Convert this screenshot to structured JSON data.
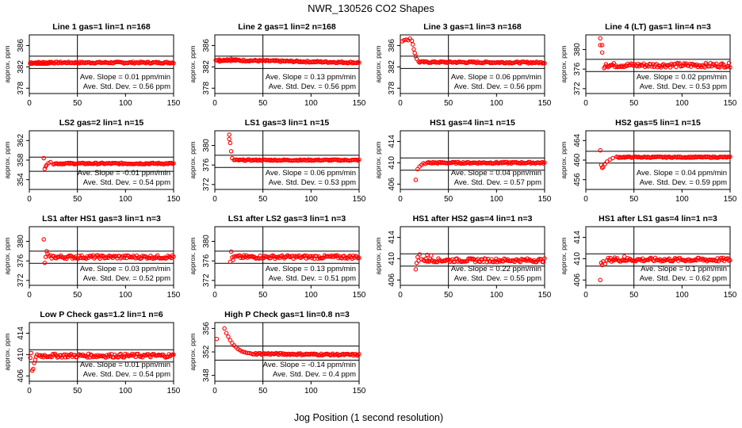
{
  "page": {
    "title": "NWR_130526   CO2 Shapes",
    "xlabel": "Jog Position (1 second resolution)"
  },
  "style": {
    "point_color": "#ff0000",
    "line_color": "#000000"
  },
  "chart_data": [
    {
      "type": "scatter",
      "title": "Line 1 gas=1 lin=1 n=168",
      "ylabel": "approx. ppm",
      "xlim": [
        0,
        150
      ],
      "ylim": [
        377,
        388
      ],
      "yticks": [
        378,
        382,
        386
      ],
      "xticks": [
        0,
        50,
        100,
        150
      ],
      "vline": 50,
      "hlines": [
        384.0,
        381.7
      ],
      "x_start": 1,
      "x_end": 150,
      "y_start": 382.8,
      "y_end": 382.8,
      "noise": 0.15,
      "early": [
        [
          1,
          382.6
        ],
        [
          3,
          382.6
        ],
        [
          5,
          382.7
        ],
        [
          7,
          382.6
        ],
        [
          9,
          382.6
        ],
        [
          11,
          382.6
        ],
        [
          13,
          382.6
        ],
        [
          15,
          382.6
        ],
        [
          17,
          382.6
        ],
        [
          19,
          382.6
        ],
        [
          21,
          382.9
        ],
        [
          23,
          382.9
        ]
      ],
      "slope_text": "Ave. Slope = 0.01 ppm/min",
      "std_text": "Ave. Std. Dev. = 0.56 ppm"
    },
    {
      "type": "scatter",
      "title": "Line 2 gas=1 lin=2 n=168",
      "ylabel": "approx. ppm",
      "xlim": [
        0,
        150
      ],
      "ylim": [
        377,
        388
      ],
      "yticks": [
        378,
        382,
        386
      ],
      "xticks": [
        0,
        50,
        100,
        150
      ],
      "vline": 50,
      "hlines": [
        384.0,
        381.7
      ],
      "x_start": 1,
      "x_end": 150,
      "y_start": 383.3,
      "y_end": 382.8,
      "noise": 0.15,
      "early": [
        [
          5,
          383.0
        ],
        [
          9,
          383.2
        ],
        [
          13,
          383.4
        ],
        [
          17,
          383.5
        ],
        [
          21,
          383.4
        ],
        [
          25,
          383.3
        ]
      ],
      "slope_text": "Ave. Slope = 0.13 ppm/min",
      "std_text": "Ave. Std. Dev. = 0.56 ppm"
    },
    {
      "type": "scatter",
      "title": "Line 3 gas=1 lin=3 n=168",
      "ylabel": "approx. ppm",
      "xlim": [
        0,
        150
      ],
      "ylim": [
        377,
        388
      ],
      "yticks": [
        378,
        382,
        386
      ],
      "xticks": [
        0,
        50,
        100,
        150
      ],
      "vline": 50,
      "hlines": [
        384.0,
        381.7
      ],
      "x_start": 20,
      "x_end": 150,
      "y_start": 382.9,
      "y_end": 382.8,
      "noise": 0.15,
      "early": [
        [
          2,
          386.8
        ],
        [
          4,
          387.0
        ],
        [
          6,
          387.1
        ],
        [
          8,
          387.0
        ],
        [
          10,
          387.3
        ],
        [
          12,
          386.9
        ],
        [
          13,
          386.2
        ],
        [
          14,
          385.3
        ],
        [
          15,
          384.6
        ],
        [
          16,
          384.0
        ],
        [
          17,
          383.5
        ],
        [
          19,
          383.0
        ]
      ],
      "slope_text": "Ave. Slope = 0.06 ppm/min",
      "std_text": "Ave. Std. Dev. = 0.56 ppm"
    },
    {
      "type": "scatter",
      "title": "Line 4 (LT) gas=1 lin=4 n=3",
      "ylabel": "approx. ppm",
      "xlim": [
        0,
        150
      ],
      "ylim": [
        371,
        383
      ],
      "yticks": [
        372,
        376,
        380
      ],
      "xticks": [
        0,
        50,
        100,
        150
      ],
      "vline": 50,
      "hlines": [
        378.0,
        375.5
      ],
      "x_start": 22,
      "x_end": 150,
      "y_start": 376.8,
      "y_end": 376.8,
      "noise": 0.45,
      "early": [
        [
          15,
          382.3
        ],
        [
          15,
          380.9
        ],
        [
          17,
          380.9
        ],
        [
          17,
          379.4
        ],
        [
          19,
          376.2
        ],
        [
          20,
          376.5
        ],
        [
          21,
          377.0
        ]
      ],
      "slope_text": "Ave. Slope = 0.02 ppm/min",
      "std_text": "Ave. Std. Dev. = 0.53 ppm"
    },
    {
      "type": "scatter",
      "title": "LS2 gas=2 lin=1 n=15",
      "ylabel": "approx. ppm",
      "xlim": [
        0,
        150
      ],
      "ylim": [
        352,
        364
      ],
      "yticks": [
        354,
        358,
        362
      ],
      "xticks": [
        0,
        50,
        100,
        150
      ],
      "vline": 50,
      "hlines": [
        358.6,
        355.7
      ],
      "x_start": 25,
      "x_end": 150,
      "y_start": 357.3,
      "y_end": 357.3,
      "noise": 0.15,
      "early": [
        [
          15,
          358.4
        ],
        [
          16,
          356.2
        ],
        [
          17,
          356.7
        ],
        [
          18,
          357.0
        ],
        [
          20,
          357.4
        ],
        [
          22,
          357.6
        ]
      ],
      "slope_text": "Ave. Slope = -0.01 ppm/min",
      "std_text": "Ave. Std. Dev. = 0.54 ppm"
    },
    {
      "type": "scatter",
      "title": "LS1 gas=3 lin=1 n=15",
      "ylabel": "approx. ppm",
      "xlim": [
        0,
        150
      ],
      "ylim": [
        371,
        383
      ],
      "yticks": [
        372,
        376,
        380
      ],
      "xticks": [
        0,
        50,
        100,
        150
      ],
      "vline": 50,
      "hlines": [
        378.0,
        375.5
      ],
      "x_start": 20,
      "x_end": 150,
      "y_start": 377.0,
      "y_end": 377.0,
      "noise": 0.12,
      "early": [
        [
          15,
          382.2
        ],
        [
          15,
          381.3
        ],
        [
          16,
          380.5
        ],
        [
          17,
          378.8
        ],
        [
          18,
          377.4
        ]
      ],
      "slope_text": "Ave. Slope = 0.06 ppm/min",
      "std_text": "Ave. Std. Dev. = 0.53 ppm"
    },
    {
      "type": "scatter",
      "title": "HS1 gas=4 lin=1 n=15",
      "ylabel": "approx. ppm",
      "xlim": [
        0,
        150
      ],
      "ylim": [
        405,
        416
      ],
      "yticks": [
        406,
        410,
        414
      ],
      "xticks": [
        0,
        50,
        100,
        150
      ],
      "vline": 50,
      "hlines": [
        410.9,
        408.6
      ],
      "x_start": 28,
      "x_end": 150,
      "y_start": 410.0,
      "y_end": 410.0,
      "noise": 0.15,
      "early": [
        [
          16,
          406.8
        ],
        [
          18,
          408.8
        ],
        [
          20,
          409.3
        ],
        [
          22,
          409.6
        ],
        [
          24,
          409.9
        ],
        [
          26,
          409.8
        ]
      ],
      "slope_text": "Ave. Slope = 0.04 ppm/min",
      "std_text": "Ave. Std. Dev. = 0.57 ppm"
    },
    {
      "type": "scatter",
      "title": "HS2 gas=5 lin=1 n=15",
      "ylabel": "approx. ppm",
      "xlim": [
        0,
        150
      ],
      "ylim": [
        454,
        466
      ],
      "yticks": [
        456,
        460,
        464
      ],
      "xticks": [
        0,
        50,
        100,
        150
      ],
      "vline": 50,
      "hlines": [
        461.8,
        459.4
      ],
      "x_start": 32,
      "x_end": 150,
      "y_start": 460.6,
      "y_end": 460.6,
      "noise": 0.12,
      "early": [
        [
          15,
          462.0
        ],
        [
          16,
          459.0
        ],
        [
          17,
          458.4
        ],
        [
          18,
          458.6
        ],
        [
          20,
          459.2
        ],
        [
          22,
          459.7
        ],
        [
          25,
          460.1
        ],
        [
          28,
          460.4
        ]
      ],
      "slope_text": "Ave. Slope = 0.04 ppm/min",
      "std_text": "Ave. Std. Dev. = 0.59 ppm"
    },
    {
      "type": "scatter",
      "title": "LS1 after HS1 gas=3 lin=1 n=3",
      "ylabel": "approx. ppm",
      "xlim": [
        0,
        150
      ],
      "ylim": [
        371,
        383
      ],
      "yticks": [
        372,
        376,
        380
      ],
      "xticks": [
        0,
        50,
        100,
        150
      ],
      "vline": 50,
      "hlines": [
        378.0,
        375.5
      ],
      "x_start": 22,
      "x_end": 150,
      "y_start": 376.8,
      "y_end": 376.8,
      "noise": 0.35,
      "early": [
        [
          15,
          380.4
        ],
        [
          16,
          375.6
        ],
        [
          17,
          376.8
        ],
        [
          18,
          378.0
        ],
        [
          19,
          377.4
        ],
        [
          20,
          377.0
        ]
      ],
      "slope_text": "Ave. Slope = 0.03 ppm/min",
      "std_text": "Ave. Std. Dev. = 0.52 ppm"
    },
    {
      "type": "scatter",
      "title": "LS1 after LS2 gas=3 lin=1 n=3",
      "ylabel": "approx. ppm",
      "xlim": [
        0,
        150
      ],
      "ylim": [
        371,
        383
      ],
      "yticks": [
        372,
        376,
        380
      ],
      "xticks": [
        0,
        50,
        100,
        150
      ],
      "vline": 50,
      "hlines": [
        378.0,
        375.5
      ],
      "x_start": 22,
      "x_end": 150,
      "y_start": 376.8,
      "y_end": 376.8,
      "noise": 0.35,
      "early": [
        [
          16,
          375.8
        ],
        [
          17,
          377.9
        ],
        [
          18,
          376.7
        ],
        [
          19,
          376.2
        ],
        [
          20,
          376.9
        ]
      ],
      "slope_text": "Ave. Slope = 0.13 ppm/min",
      "std_text": "Ave. Std. Dev. = 0.51 ppm"
    },
    {
      "type": "scatter",
      "title": "HS1 after HS2 gas=4 lin=1 n=3",
      "ylabel": "approx. ppm",
      "xlim": [
        0,
        150
      ],
      "ylim": [
        405,
        416
      ],
      "yticks": [
        406,
        410,
        414
      ],
      "xticks": [
        0,
        50,
        100,
        150
      ],
      "vline": 50,
      "hlines": [
        410.9,
        408.6
      ],
      "x_start": 24,
      "x_end": 150,
      "y_start": 409.7,
      "y_end": 409.7,
      "noise": 0.35,
      "early": [
        [
          16,
          408.0
        ],
        [
          17,
          409.2
        ],
        [
          18,
          410.3
        ],
        [
          19,
          409.6
        ],
        [
          20,
          410.8
        ],
        [
          22,
          409.9
        ],
        [
          28,
          410.7
        ],
        [
          32,
          410.6
        ]
      ],
      "slope_text": "Ave. Slope = 0.22 ppm/min",
      "std_text": "Ave. Std. Dev. = 0.55 ppm"
    },
    {
      "type": "scatter",
      "title": "HS1 after LS1 gas=4 lin=1 n=3",
      "ylabel": "approx. ppm",
      "xlim": [
        0,
        150
      ],
      "ylim": [
        405,
        416
      ],
      "yticks": [
        406,
        410,
        414
      ],
      "xticks": [
        0,
        50,
        100,
        150
      ],
      "vline": 50,
      "hlines": [
        410.9,
        408.6
      ],
      "x_start": 22,
      "x_end": 150,
      "y_start": 409.8,
      "y_end": 409.8,
      "noise": 0.35,
      "early": [
        [
          15,
          406.0
        ],
        [
          16,
          409.2
        ],
        [
          17,
          408.8
        ],
        [
          18,
          409.5
        ],
        [
          20,
          409.0
        ],
        [
          30,
          410.2
        ],
        [
          40,
          410.4
        ]
      ],
      "slope_text": "Ave. Slope = 0.1 ppm/min",
      "std_text": "Ave. Std. Dev. = 0.62 ppm"
    },
    {
      "type": "scatter",
      "title": "Low P Check gas=1.2 lin=1 n=6",
      "ylabel": "approx. ppm",
      "xlim": [
        0,
        150
      ],
      "ylim": [
        405,
        416
      ],
      "yticks": [
        406,
        410,
        414
      ],
      "xticks": [
        0,
        50,
        100,
        150
      ],
      "vline": 50,
      "hlines": [
        410.9,
        408.6
      ],
      "x_start": 10,
      "x_end": 150,
      "y_start": 409.8,
      "y_end": 409.8,
      "noise": 0.35,
      "early": [
        [
          1,
          409.4
        ],
        [
          2,
          410.3
        ],
        [
          3,
          407.0
        ],
        [
          4,
          407.3
        ],
        [
          5,
          408.4
        ],
        [
          6,
          409.0
        ],
        [
          7,
          409.6
        ],
        [
          8,
          410.0
        ]
      ],
      "slope_text": "Ave. Slope = 0.01 ppm/min",
      "std_text": "Ave. Std. Dev. = 0.54 ppm"
    },
    {
      "type": "scatter",
      "title": "High P Check gas=1 lin=0.8 n=3",
      "ylabel": "approx. ppm",
      "xlim": [
        0,
        150
      ],
      "ylim": [
        347,
        357
      ],
      "yticks": [
        348,
        352,
        356
      ],
      "xticks": [
        0,
        50,
        100,
        150
      ],
      "vline": 50,
      "hlines": [
        353.0,
        350.6
      ],
      "x_start": 40,
      "x_end": 150,
      "y_start": 351.7,
      "y_end": 351.5,
      "noise": 0.15,
      "early": [
        [
          2,
          354.2
        ],
        [
          10,
          356.0
        ],
        [
          12,
          355.2
        ],
        [
          14,
          354.6
        ],
        [
          16,
          354.0
        ],
        [
          18,
          353.5
        ],
        [
          20,
          353.1
        ],
        [
          22,
          352.8
        ],
        [
          24,
          352.5
        ],
        [
          26,
          352.3
        ],
        [
          28,
          352.1
        ],
        [
          30,
          352.0
        ],
        [
          32,
          351.9
        ],
        [
          34,
          351.8
        ],
        [
          36,
          351.8
        ],
        [
          38,
          351.7
        ]
      ],
      "slope_text": "Ave. Slope = -0.14 ppm/min",
      "std_text": "Ave. Std. Dev. = 0.4 ppm"
    }
  ]
}
